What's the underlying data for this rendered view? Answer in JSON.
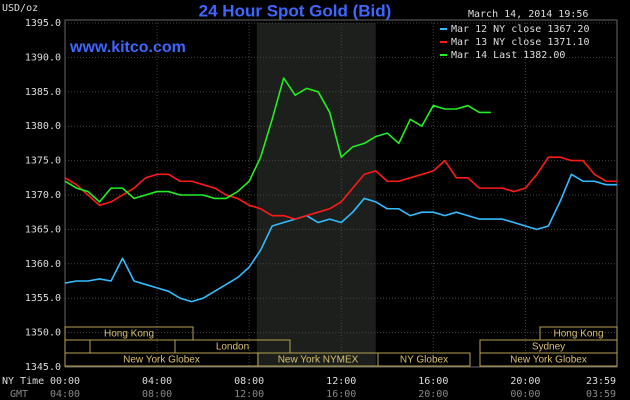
{
  "chart_data": {
    "type": "line",
    "title": "24 Hour Spot Gold (Bid)",
    "unit_label": "USD/oz",
    "timestamp": "March 14, 2014 19:56",
    "site": "www.kitco.com",
    "x_axis_label": "NY Time",
    "x2_axis_label": "GMT",
    "x": [
      0,
      0.5,
      1,
      1.5,
      2,
      2.5,
      3,
      3.5,
      4,
      4.5,
      5,
      5.5,
      6,
      6.5,
      7,
      7.5,
      8,
      8.5,
      9,
      9.5,
      10,
      10.5,
      11,
      11.5,
      12,
      12.5,
      13,
      13.5,
      14,
      14.5,
      15,
      15.5,
      16,
      16.5,
      17,
      17.5,
      18,
      18.5,
      19,
      19.5,
      20,
      20.5,
      21,
      21.5,
      22,
      22.5,
      23,
      23.5,
      23.98
    ],
    "series": [
      {
        "name": "Mar 12 NY close 1367.20",
        "color": "#33bbff",
        "values": [
          1357.2,
          1357.5,
          1357.5,
          1357.8,
          1357.5,
          1360.8,
          1357.5,
          1357,
          1356.5,
          1356,
          1355,
          1354.5,
          1355,
          1356,
          1357,
          1358,
          1359.5,
          1362,
          1365.5,
          1366,
          1366.5,
          1367,
          1366,
          1366.5,
          1366,
          1367.5,
          1369.5,
          1369,
          1368,
          1368,
          1367,
          1367.5,
          1367.5,
          1367,
          1367.5,
          1367,
          1366.5,
          1366.5,
          1366.5,
          1366,
          1365.5,
          1365,
          1365.5,
          1369,
          1373,
          1372,
          1372,
          1371.5,
          1371.5
        ]
      },
      {
        "name": "Mar 13 NY close 1371.10",
        "color": "#ff1a1a",
        "values": [
          1372.5,
          1371.5,
          1370,
          1368.5,
          1369,
          1370,
          1371,
          1372.5,
          1373,
          1373,
          1372,
          1372,
          1371.5,
          1371,
          1370,
          1369.5,
          1368.5,
          1368,
          1367,
          1367,
          1366.5,
          1367,
          1367.5,
          1368,
          1369,
          1371,
          1373,
          1373.5,
          1372,
          1372,
          1372.5,
          1373,
          1373.5,
          1375,
          1372.5,
          1372.5,
          1371,
          1371,
          1371,
          1370.5,
          1371,
          1373,
          1375.5,
          1375.5,
          1375,
          1375,
          1373,
          1372,
          1372
        ]
      },
      {
        "name": "Mar 14 Last 1382.00",
        "color": "#22ee22",
        "values": [
          1372,
          1371,
          1370.5,
          1369,
          1371,
          1371,
          1369.5,
          1370,
          1370.5,
          1370.5,
          1370,
          1370,
          1370,
          1369.5,
          1369.5,
          1370.5,
          1372,
          1375.5,
          1381,
          1387,
          1384.5,
          1385.5,
          1385,
          1382,
          1375.5,
          1377,
          1377.5,
          1378.5,
          1379,
          1377.5,
          1381,
          1380,
          1383,
          1382.5,
          1382.5,
          1383,
          1382,
          1382,
          null,
          null,
          null,
          null,
          null,
          null,
          null,
          null,
          null,
          null,
          null
        ]
      }
    ],
    "xlim": [
      0,
      23.98
    ],
    "xticks": [
      {
        "value": 0,
        "label": "00:00"
      },
      {
        "value": 4,
        "label": "04:00"
      },
      {
        "value": 8,
        "label": "08:00"
      },
      {
        "value": 12,
        "label": "12:00"
      },
      {
        "value": 16,
        "label": "16:00"
      },
      {
        "value": 20,
        "label": "20:00"
      },
      {
        "value": 23.98,
        "label": "23:59"
      }
    ],
    "x2ticks": [
      {
        "value": 0,
        "label": "04:00"
      },
      {
        "value": 4,
        "label": "08:00"
      },
      {
        "value": 8,
        "label": "12:00"
      },
      {
        "value": 12,
        "label": "16:00"
      },
      {
        "value": 16,
        "label": "20:00"
      },
      {
        "value": 20,
        "label": "00:00"
      },
      {
        "value": 23.98,
        "label": "03:59"
      }
    ],
    "ylim": [
      1345,
      1395
    ],
    "yticks": [
      {
        "value": 1345,
        "label": "1345.0"
      },
      {
        "value": 1350,
        "label": "1350.0"
      },
      {
        "value": 1355,
        "label": "1355.0"
      },
      {
        "value": 1360,
        "label": "1360.0"
      },
      {
        "value": 1365,
        "label": "1365.0"
      },
      {
        "value": 1370,
        "label": "1370.0"
      },
      {
        "value": 1375,
        "label": "1375.0"
      },
      {
        "value": 1380,
        "label": "1380.0"
      },
      {
        "value": 1385,
        "label": "1385.0"
      },
      {
        "value": 1390,
        "label": "1390.0"
      },
      {
        "value": 1395,
        "label": "1395.0"
      }
    ],
    "highlight": [
      8.33,
      13.5
    ],
    "grid": true,
    "legend": "upper right",
    "sessions": [
      "Hong Kong",
      "London",
      "New York Globex",
      "New York NYMEX",
      "NY Globex",
      "Sydney",
      "Hong Kong",
      "New York Globex"
    ]
  }
}
